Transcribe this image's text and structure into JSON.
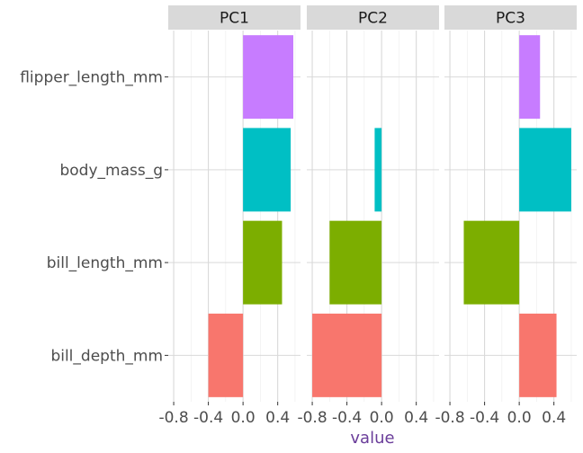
{
  "chart_data": {
    "type": "bar",
    "orientation": "horizontal",
    "facets": [
      "PC1",
      "PC2",
      "PC3"
    ],
    "categories": [
      "flipper_length_mm",
      "body_mass_g",
      "bill_length_mm",
      "bill_depth_mm"
    ],
    "values": {
      "PC1": {
        "flipper_length_mm": 0.58,
        "body_mass_g": 0.55,
        "bill_length_mm": 0.45,
        "bill_depth_mm": -0.4
      },
      "PC2": {
        "flipper_length_mm": 0.0,
        "body_mass_g": -0.08,
        "bill_length_mm": -0.6,
        "bill_depth_mm": -0.8
      },
      "PC3": {
        "flipper_length_mm": 0.24,
        "body_mass_g": 0.6,
        "bill_length_mm": -0.64,
        "bill_depth_mm": 0.43
      }
    },
    "fill_colors": {
      "flipper_length_mm": "#C77CFF",
      "body_mass_g": "#00BFC4",
      "bill_length_mm": "#7CAE00",
      "bill_depth_mm": "#F8766D"
    },
    "xlabel": "value",
    "ylabel": "",
    "xlim": [
      -0.8,
      0.6
    ],
    "x_ticks": [
      -0.8,
      -0.4,
      0.0,
      0.4
    ],
    "x_tick_labels": [
      "-0.8",
      "-0.4",
      "0.0",
      "0.4"
    ],
    "grid": true,
    "legend": "none",
    "colors": {
      "strip_background": "#d9d9d9",
      "grid_major": "#d9d9d9",
      "grid_minor": "#ececec",
      "axis_title": "#6a3d9a",
      "text": "#4d4d4d"
    }
  }
}
